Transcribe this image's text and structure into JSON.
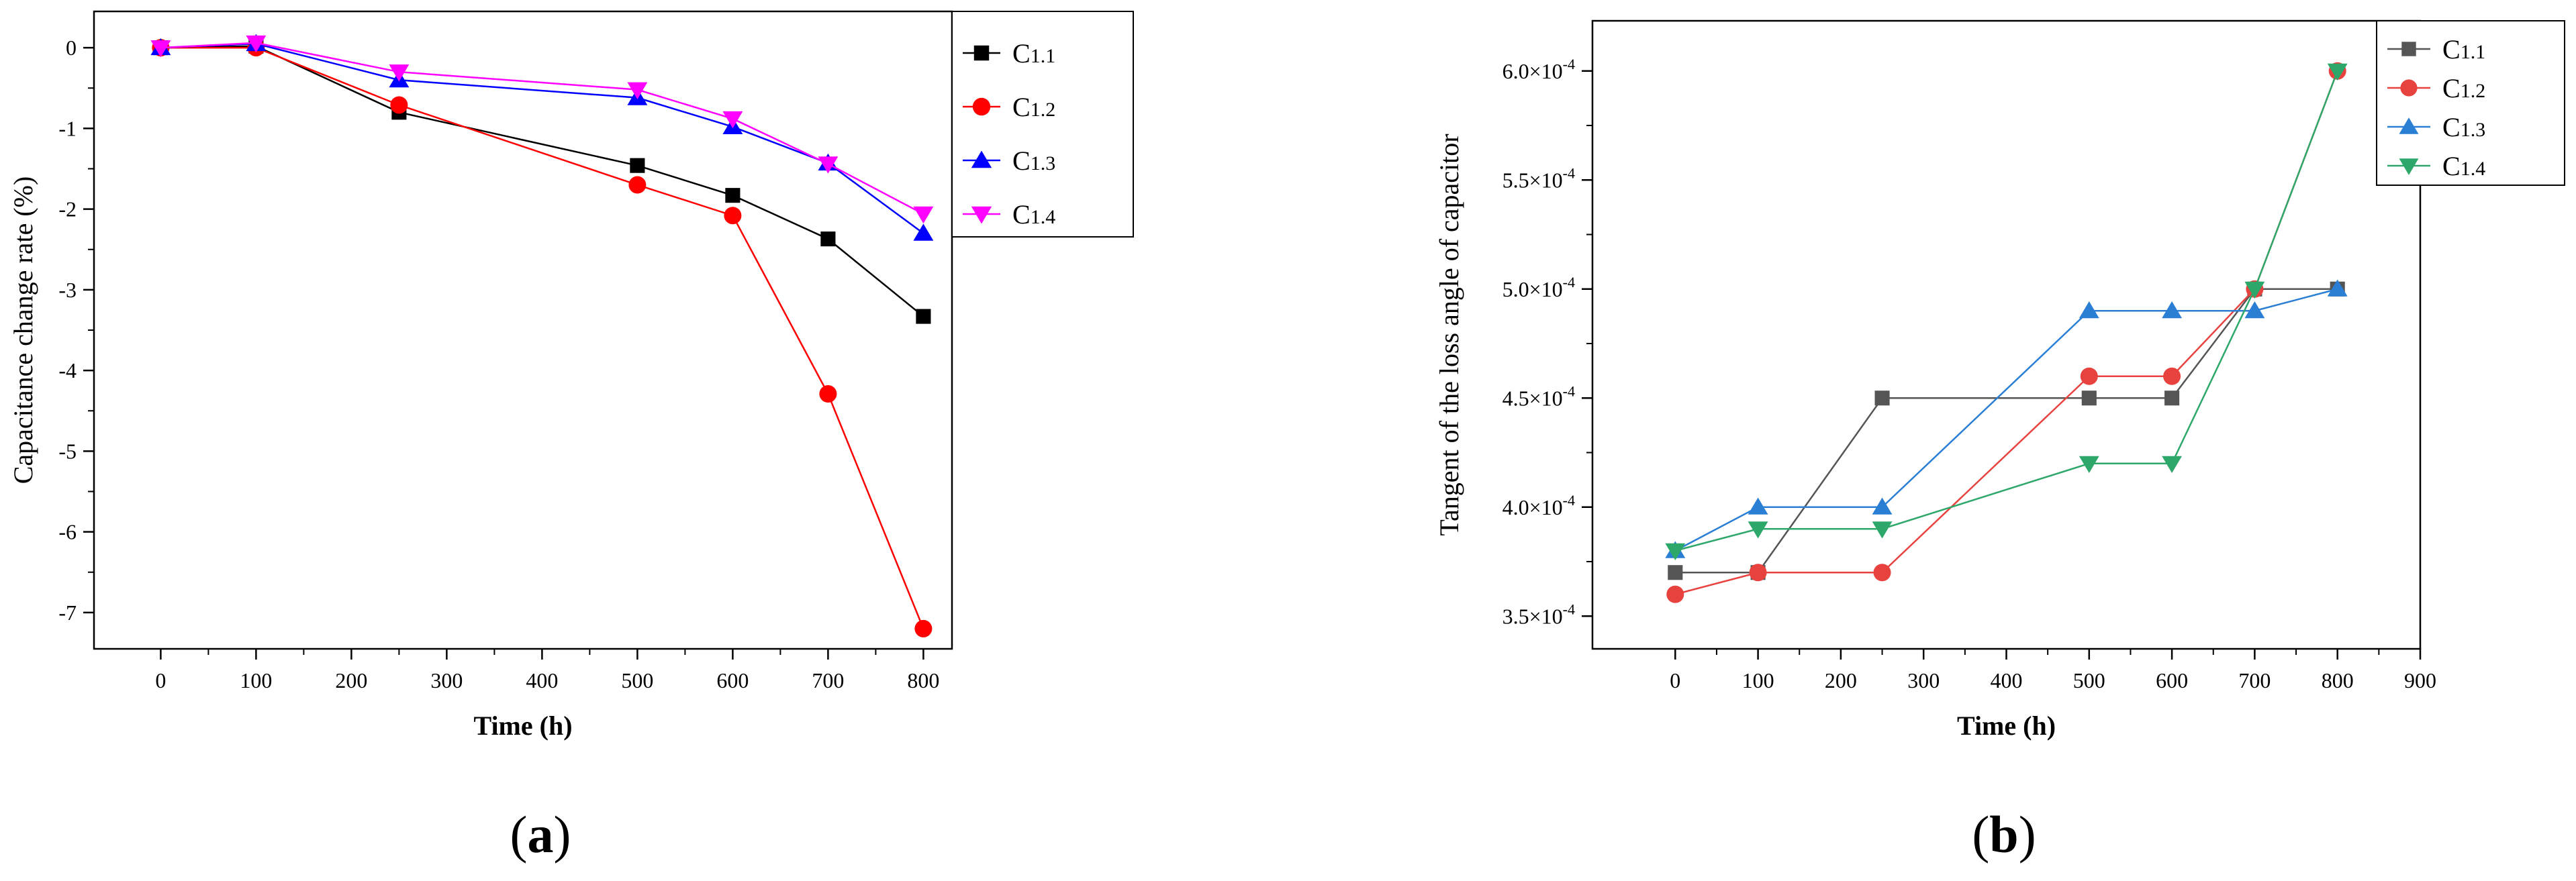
{
  "panels": [
    {
      "label_open": "(",
      "label_letter": "a",
      "label_close": ")"
    },
    {
      "label_open": "(",
      "label_letter": "b",
      "label_close": ")"
    }
  ],
  "chart_data": [
    {
      "type": "line",
      "title": "",
      "xlabel": "Time (h)",
      "ylabel": "Capacitance change rate (%)",
      "xlim": [
        -70,
        830
      ],
      "ylim": [
        -7.45,
        0.45
      ],
      "xticks": [
        0,
        100,
        200,
        300,
        400,
        500,
        600,
        700,
        800
      ],
      "xtick_labels": [
        "0",
        "100",
        "200",
        "300",
        "400",
        "500",
        "600",
        "700",
        "800"
      ],
      "yticks": [
        0,
        -1,
        -2,
        -3,
        -4,
        -5,
        -6,
        -7
      ],
      "ytick_labels": [
        "0",
        "-1",
        "-2",
        "-3",
        "-4",
        "-5",
        "-6",
        "-7"
      ],
      "legend_position": "top-right-outside",
      "grid": false,
      "x": [
        0,
        100,
        250,
        500,
        600,
        700,
        800
      ],
      "series": [
        {
          "name": "C1.1",
          "name_main": "C",
          "name_sub": "1.1",
          "color": "#000000",
          "marker": "square",
          "values": [
            0,
            0.02,
            -0.8,
            -1.46,
            -1.83,
            -2.37,
            -3.33
          ]
        },
        {
          "name": "C1.2",
          "name_main": "C",
          "name_sub": "1.2",
          "color": "#ff0000",
          "marker": "circle",
          "values": [
            0,
            0,
            -0.71,
            -1.7,
            -2.08,
            -4.29,
            -7.2
          ]
        },
        {
          "name": "C1.3",
          "name_main": "C",
          "name_sub": "1.3",
          "color": "#0000ff",
          "marker": "triangle-up",
          "values": [
            0,
            0.05,
            -0.4,
            -0.62,
            -0.98,
            -1.43,
            -2.3
          ]
        },
        {
          "name": "C1.4",
          "name_main": "C",
          "name_sub": "1.4",
          "color": "#ff00ff",
          "marker": "triangle-down",
          "values": [
            0,
            0.06,
            -0.3,
            -0.52,
            -0.88,
            -1.44,
            -2.06
          ]
        }
      ]
    },
    {
      "type": "line",
      "title": "",
      "xlabel": "Time (h)",
      "ylabel": "Tangent of the loss angle of capacitor",
      "xlim": [
        -100,
        900
      ],
      "ylim": [
        0.000335,
        0.000623
      ],
      "xticks": [
        0,
        100,
        200,
        300,
        400,
        500,
        600,
        700,
        800,
        900
      ],
      "xtick_labels": [
        "0",
        "100",
        "200",
        "300",
        "400",
        "500",
        "600",
        "700",
        "800",
        "900"
      ],
      "yticks": [
        0.00035,
        0.0004,
        0.00045,
        0.0005,
        0.00055,
        0.0006
      ],
      "ytick_mantissa": [
        "3.5",
        "4.0",
        "4.5",
        "5.0",
        "5.5",
        "6.0"
      ],
      "ytick_times": "×10",
      "ytick_exponent": "-4",
      "legend_position": "top-right-outside",
      "grid": false,
      "x": [
        0,
        100,
        250,
        500,
        600,
        700,
        800
      ],
      "series": [
        {
          "name": "C1.1",
          "name_main": "C",
          "name_sub": "1.1",
          "color": "#555555",
          "marker": "square",
          "values": [
            0.00037,
            0.00037,
            0.00045,
            0.00045,
            0.00045,
            0.0005,
            0.0005
          ]
        },
        {
          "name": "C1.2",
          "name_main": "C",
          "name_sub": "1.2",
          "color": "#e8423f",
          "marker": "circle",
          "values": [
            0.00036,
            0.00037,
            0.00037,
            0.00046,
            0.00046,
            0.0005,
            0.0006
          ]
        },
        {
          "name": "C1.3",
          "name_main": "C",
          "name_sub": "1.3",
          "color": "#2a7fd4",
          "marker": "triangle-up",
          "values": [
            0.00038,
            0.0004,
            0.0004,
            0.00049,
            0.00049,
            0.00049,
            0.0005
          ]
        },
        {
          "name": "C1.4",
          "name_main": "C",
          "name_sub": "1.4",
          "color": "#2ea86a",
          "marker": "triangle-down",
          "values": [
            0.00038,
            0.00039,
            0.00039,
            0.00042,
            0.00042,
            0.0005,
            0.0006
          ]
        }
      ]
    }
  ]
}
